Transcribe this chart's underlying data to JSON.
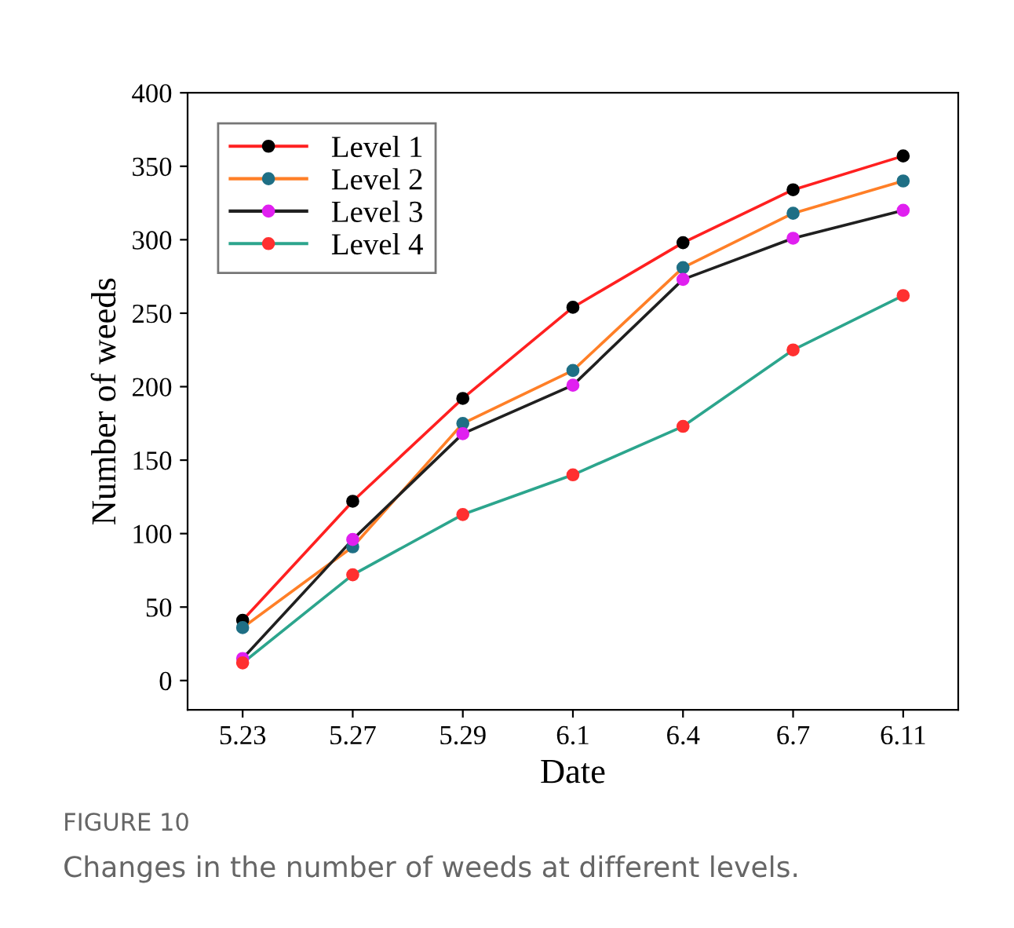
{
  "chart_data": {
    "type": "line",
    "xlabel": "Date",
    "ylabel": "Number of weeds",
    "categories": [
      "5.23",
      "5.27",
      "5.29",
      "6.1",
      "6.4",
      "6.7",
      "6.11"
    ],
    "ylim": [
      -20,
      400
    ],
    "yticks": [
      0,
      50,
      100,
      150,
      200,
      250,
      300,
      350,
      400
    ],
    "legend": "top left",
    "marker": "circle",
    "line_style": "solid",
    "grid": false,
    "series": [
      {
        "name": "Level 1",
        "color": "#ff2020",
        "colors": [
          "#000000",
          "#000000",
          "#000000",
          "#000000",
          "#000000",
          "#000000",
          "#000000"
        ],
        "values": [
          41,
          122,
          192,
          254,
          298,
          334,
          357
        ]
      },
      {
        "name": "Level 2",
        "color": "#ff7f27",
        "colors": [
          "#1f6f85",
          "#1f6f85",
          "#1f6f85",
          "#1f6f85",
          "#1f6f85",
          "#1f6f85",
          "#1f6f85"
        ],
        "values": [
          36,
          91,
          175,
          211,
          281,
          318,
          340
        ]
      },
      {
        "name": "Level 3",
        "color": "#202020",
        "colors": [
          "#e020f0",
          "#e020f0",
          "#e020f0",
          "#e020f0",
          "#e020f0",
          "#e020f0",
          "#e020f0"
        ],
        "values": [
          15,
          96,
          168,
          201,
          273,
          301,
          320
        ]
      },
      {
        "name": "Level 4",
        "color": "#2ca58d",
        "colors": [
          "#ff3030",
          "#ff3030",
          "#ff3030",
          "#ff3030",
          "#ff3030",
          "#ff3030",
          "#ff3030"
        ],
        "values": [
          12,
          72,
          113,
          140,
          173,
          225,
          262
        ]
      }
    ],
    "annotations": [
      "FIGURE 10",
      "Changes in the number of weeds at different levels."
    ]
  }
}
